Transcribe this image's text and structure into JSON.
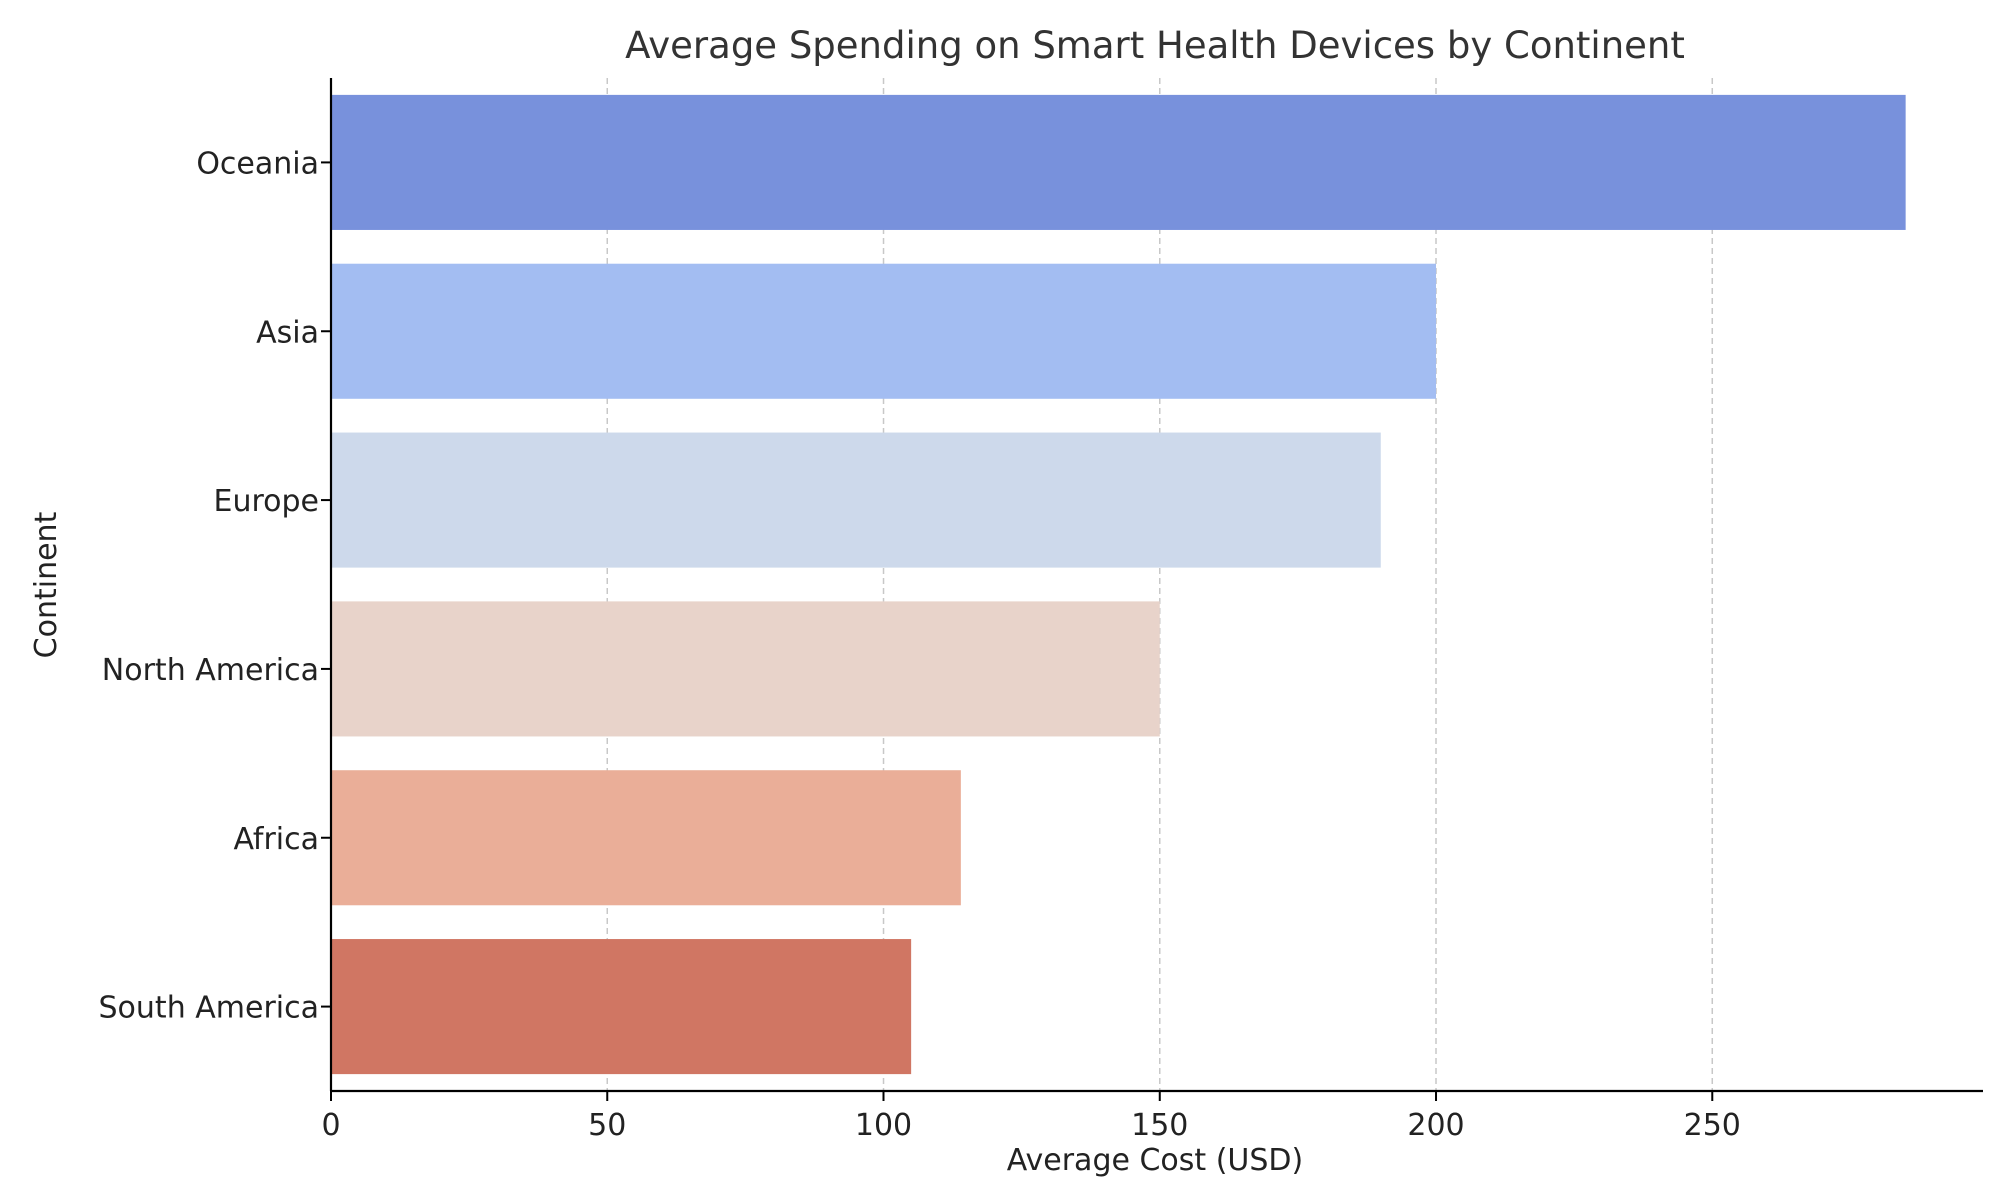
{
  "chart_data": {
    "type": "bar",
    "orientation": "horizontal",
    "title": "Average Spending on Smart Health Devices by Continent",
    "xlabel": "Average Cost (USD)",
    "ylabel": "Continent",
    "categories": [
      "Oceania",
      "Asia",
      "Europe",
      "North America",
      "Africa",
      "South America"
    ],
    "values": [
      285,
      200,
      190,
      150,
      114,
      105
    ],
    "colors": [
      "#7891dc",
      "#a3bdf2",
      "#cdd9eb",
      "#e8d3ca",
      "#eaae98",
      "#d07663"
    ],
    "xlim": [
      0,
      299
    ],
    "xticks": [
      0,
      50,
      100,
      150,
      200,
      250
    ],
    "grid": "x-dashed",
    "legend": "none"
  }
}
